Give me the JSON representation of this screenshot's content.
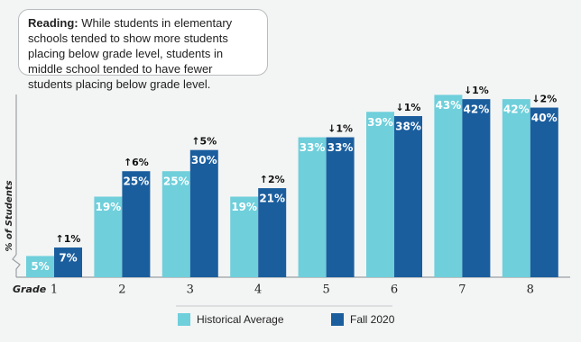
{
  "chart_data": {
    "type": "bar",
    "reading": {
      "label": "Reading:",
      "text": "While students in elementary schools tended to show more students placing below grade level, students in middle school tended to have fewer students placing below grade level."
    },
    "y_label": "% of Students",
    "x_label": "Grade",
    "categories": [
      "1",
      "2",
      "3",
      "4",
      "5",
      "6",
      "7",
      "8"
    ],
    "series": [
      {
        "name": "Historical Average",
        "color": "#6fcfdb",
        "values": [
          5,
          19,
          25,
          19,
          33,
          39,
          43,
          42
        ],
        "value_labels": [
          "5%",
          "19%",
          "25%",
          "19%",
          "33%",
          "39%",
          "43%",
          "42%"
        ]
      },
      {
        "name": "Fall 2020",
        "color": "#1b5e9e",
        "values": [
          7,
          25,
          30,
          21,
          33,
          38,
          42,
          40
        ],
        "value_labels": [
          "7%",
          "25%",
          "30%",
          "21%",
          "33%",
          "38%",
          "42%",
          "40%"
        ]
      }
    ],
    "change_labels": [
      "↑1%",
      "↑6%",
      "↑5%",
      "↑2%",
      "↓1%",
      "↓1%",
      "↓1%",
      "↓2%"
    ],
    "ylim": [
      0,
      45
    ]
  }
}
